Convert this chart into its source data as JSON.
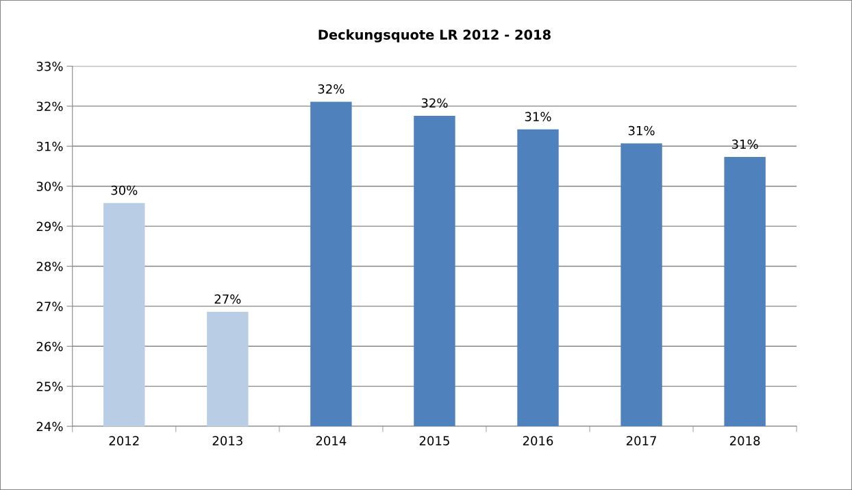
{
  "chart_data": {
    "type": "bar",
    "title": "Deckungsquote LR 2012 - 2018",
    "categories": [
      "2012",
      "2013",
      "2014",
      "2015",
      "2016",
      "2017",
      "2018"
    ],
    "values": [
      29.58,
      26.86,
      32.11,
      31.76,
      31.42,
      31.07,
      30.73
    ],
    "colors": [
      "#b9cde5",
      "#b9cde5",
      "#4f81bd",
      "#4f81bd",
      "#4f81bd",
      "#4f81bd",
      "#4f81bd"
    ],
    "value_labels": [
      "30%",
      "27%",
      "32%",
      "32%",
      "31%",
      "31%",
      "31%"
    ],
    "ylim": [
      24,
      33
    ],
    "yticks": [
      {
        "value": 24,
        "label": "24%"
      },
      {
        "value": 25,
        "label": "25%"
      },
      {
        "value": 26,
        "label": "26%"
      },
      {
        "value": 27,
        "label": "27%"
      },
      {
        "value": 28,
        "label": "28%"
      },
      {
        "value": 29,
        "label": "29%"
      },
      {
        "value": 30,
        "label": "30%"
      },
      {
        "value": 31,
        "label": "31%"
      },
      {
        "value": 32,
        "label": "32%"
      },
      {
        "value": 33,
        "label": "33%"
      }
    ],
    "grid": "y"
  }
}
